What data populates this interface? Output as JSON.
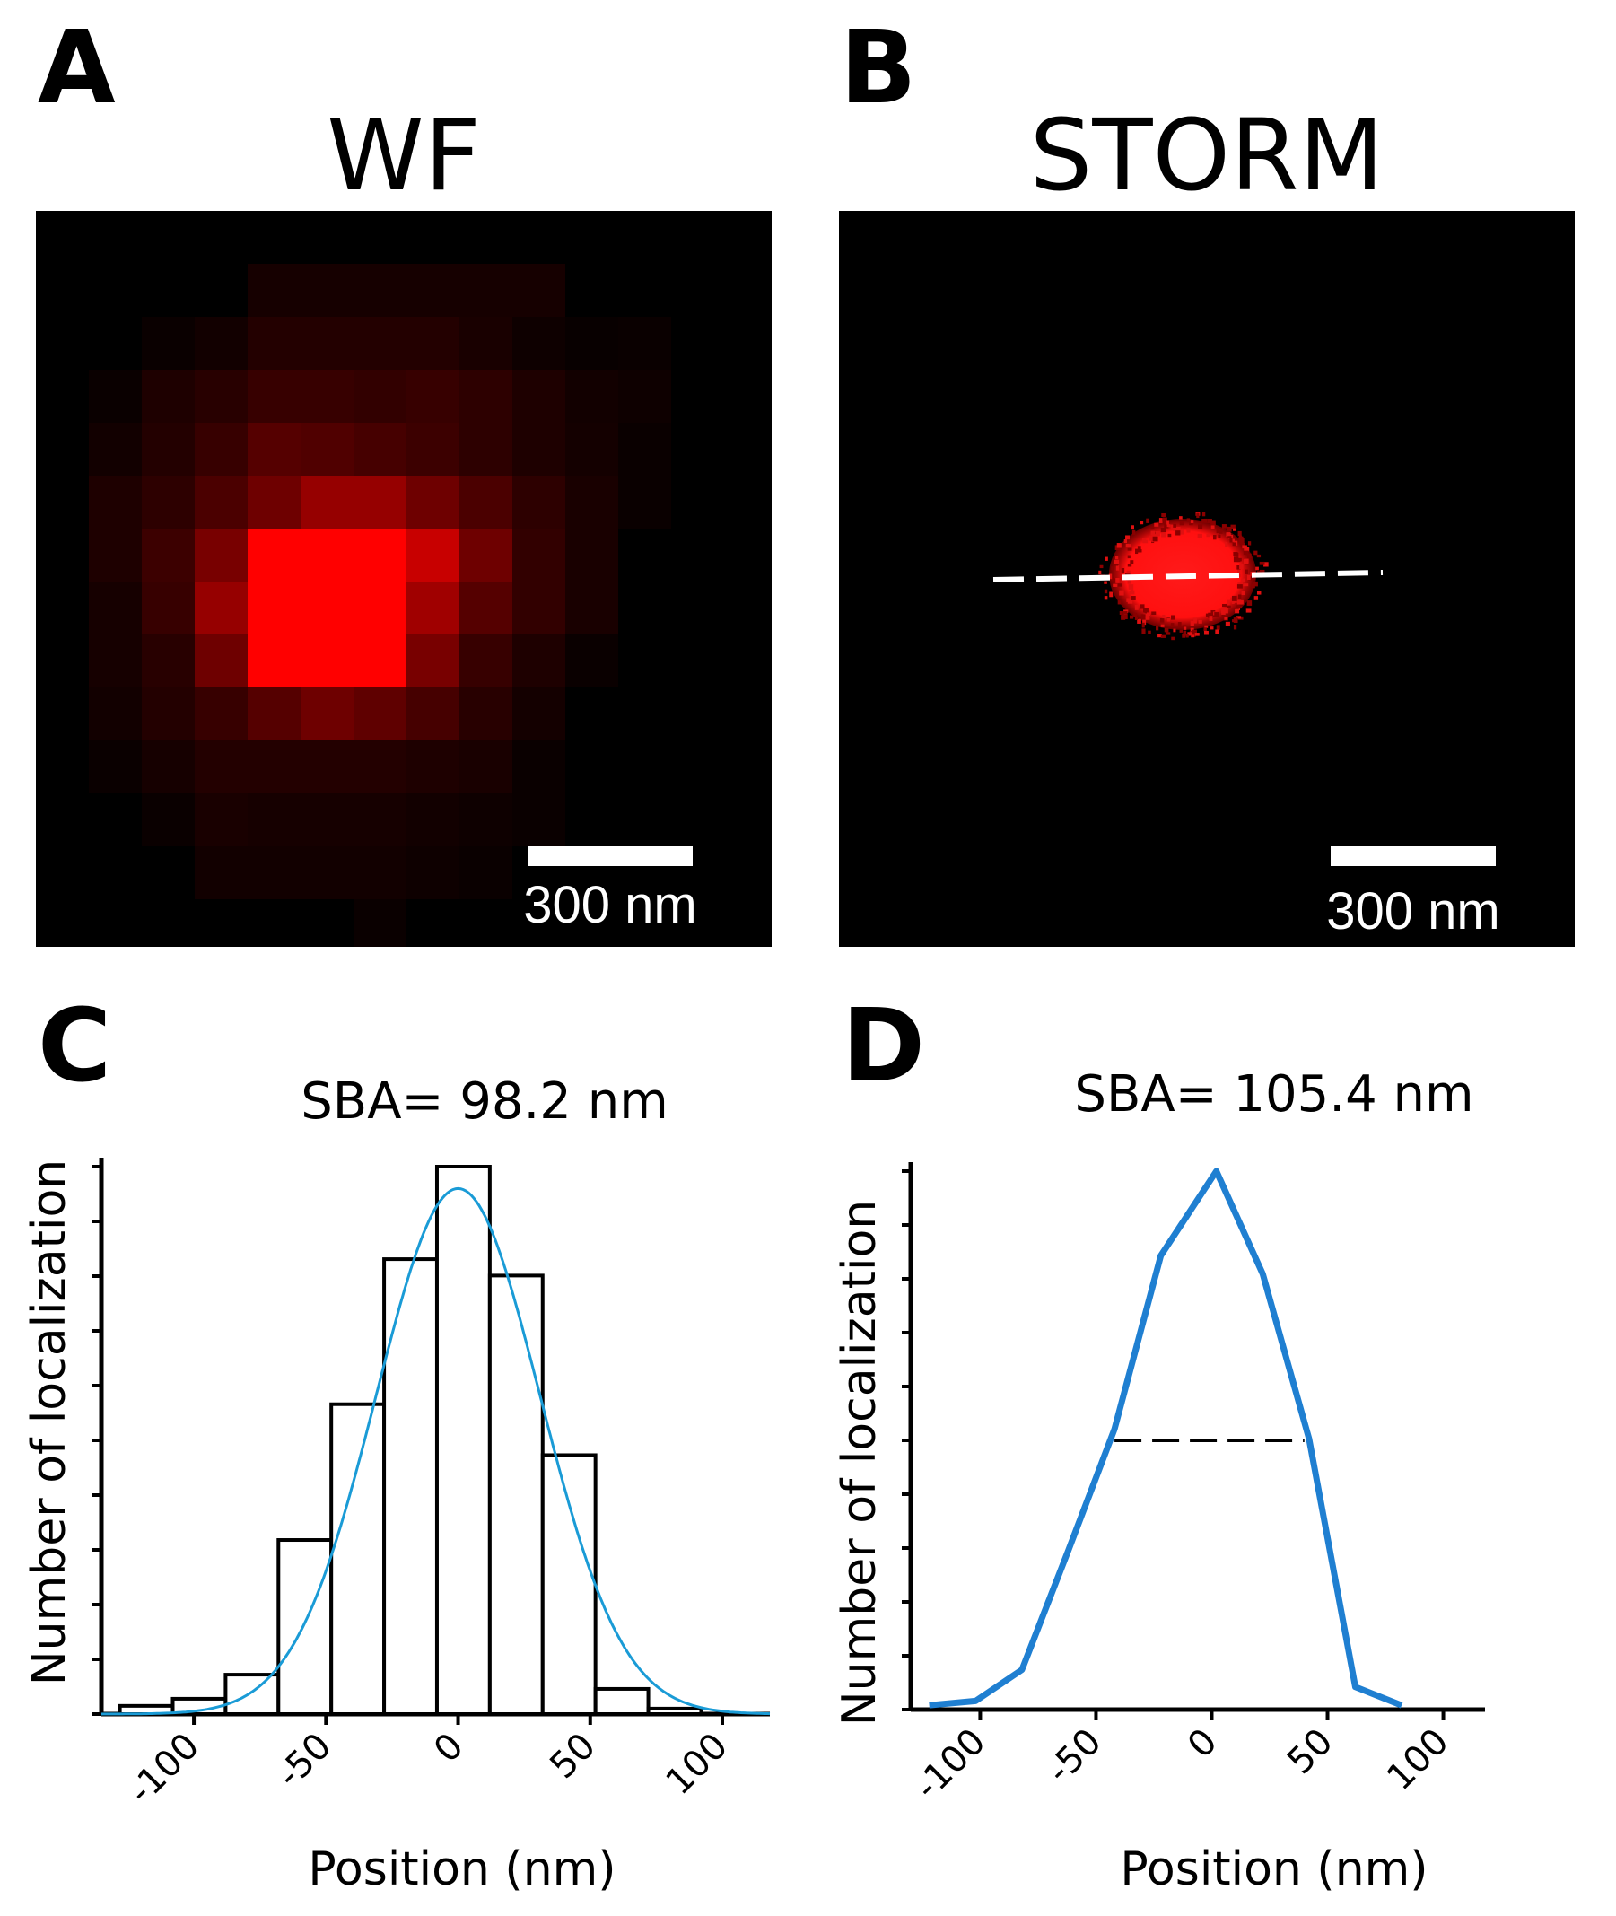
{
  "panels": {
    "a": {
      "letter": "A",
      "title": "WF",
      "scale_label": "300 nm"
    },
    "b": {
      "letter": "B",
      "title": "STORM",
      "scale_label": "300 nm"
    },
    "c": {
      "letter": "C"
    },
    "d": {
      "letter": "D"
    }
  },
  "wf_image": {
    "rows": [
      [
        0,
        0,
        0,
        0,
        0,
        0,
        0,
        0,
        0,
        0,
        0,
        0,
        0
      ],
      [
        0,
        0,
        0,
        0,
        22,
        22,
        22,
        22,
        22,
        22,
        0,
        0,
        0
      ],
      [
        0,
        0,
        10,
        18,
        35,
        35,
        35,
        35,
        25,
        14,
        8,
        10,
        0
      ],
      [
        0,
        10,
        30,
        40,
        55,
        55,
        50,
        55,
        45,
        30,
        18,
        14,
        0
      ],
      [
        0,
        18,
        35,
        55,
        85,
        80,
        70,
        60,
        45,
        30,
        20,
        10,
        0
      ],
      [
        0,
        30,
        45,
        75,
        110,
        150,
        150,
        110,
        75,
        45,
        25,
        10,
        0
      ],
      [
        0,
        30,
        60,
        120,
        255,
        255,
        255,
        200,
        110,
        50,
        25,
        0,
        0
      ],
      [
        0,
        22,
        55,
        150,
        255,
        255,
        255,
        160,
        85,
        50,
        25,
        0,
        0
      ],
      [
        0,
        22,
        40,
        110,
        255,
        255,
        255,
        120,
        55,
        30,
        10,
        0,
        0
      ],
      [
        0,
        18,
        35,
        55,
        85,
        110,
        95,
        70,
        40,
        20,
        0,
        0,
        0
      ],
      [
        0,
        10,
        22,
        35,
        35,
        35,
        35,
        30,
        25,
        10,
        0,
        0,
        0
      ],
      [
        0,
        0,
        10,
        25,
        22,
        22,
        22,
        18,
        14,
        10,
        0,
        0,
        0
      ],
      [
        0,
        0,
        0,
        18,
        18,
        18,
        18,
        14,
        10,
        0,
        0,
        0,
        0
      ],
      [
        0,
        0,
        0,
        0,
        0,
        0,
        10,
        0,
        0,
        0,
        0,
        0,
        0
      ]
    ]
  },
  "chart_data": [
    {
      "type": "bar",
      "title": "SBA= 98.2 nm",
      "xlabel": "Position (nm)",
      "ylabel": "Number of localization",
      "xlim": [
        -135,
        118
      ],
      "ylim": [
        0,
        100
      ],
      "xticks": [
        -100,
        -50,
        0,
        50,
        100
      ],
      "yticks": [
        0,
        10,
        20,
        30,
        40,
        50,
        60,
        70,
        80,
        90,
        100
      ],
      "bins": [
        {
          "x0": -128,
          "x1": -108,
          "value": 1.5
        },
        {
          "x0": -108,
          "x1": -88,
          "value": 2.8
        },
        {
          "x0": -88,
          "x1": -68,
          "value": 7.2
        },
        {
          "x0": -68,
          "x1": -48,
          "value": 31.8
        },
        {
          "x0": -48,
          "x1": -28,
          "value": 56.6
        },
        {
          "x0": -28,
          "x1": -8,
          "value": 83.1
        },
        {
          "x0": -8,
          "x1": 12,
          "value": 100
        },
        {
          "x0": 12,
          "x1": 32,
          "value": 80.1
        },
        {
          "x0": 32,
          "x1": 52,
          "value": 47.3
        },
        {
          "x0": 52,
          "x1": 72,
          "value": 4.6
        },
        {
          "x0": 72,
          "x1": 92,
          "value": 1.0
        }
      ],
      "fit": {
        "type": "gaussian",
        "mu": 0,
        "sigma": 31,
        "amplitude": 96
      }
    },
    {
      "type": "line",
      "title": "SBA= 105.4 nm",
      "xlabel": "Position (nm)",
      "ylabel": "Number of localization",
      "xlim": [
        -130,
        118
      ],
      "ylim": [
        0,
        100
      ],
      "xticks": [
        -100,
        -50,
        0,
        50,
        100
      ],
      "yticks": [
        0,
        10,
        20,
        30,
        40,
        50,
        60,
        70,
        80,
        90,
        100
      ],
      "series": [
        {
          "x": [
            -122,
            -102,
            -82,
            -62,
            -42,
            -22,
            2,
            22,
            42,
            62,
            82
          ],
          "y": [
            0.8,
            1.6,
            7.4,
            29.5,
            52.1,
            84.3,
            100,
            80.9,
            50.3,
            4.2,
            0.8
          ]
        }
      ],
      "fwhm": {
        "y": 50,
        "x0": -42,
        "x1": 40
      }
    }
  ]
}
